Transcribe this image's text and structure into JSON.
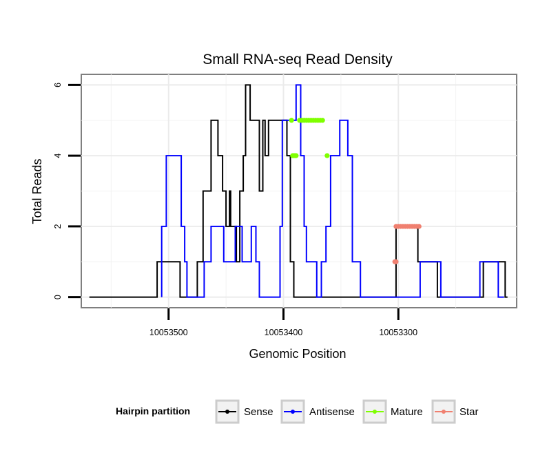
{
  "chart_data": {
    "type": "line",
    "title": "Small RNA-seq Read Density",
    "xlabel": "Genomic Position",
    "ylabel": "Total Reads",
    "x_reversed": true,
    "xlim": [
      10053576,
      10053197
    ],
    "ylim": [
      -0.3,
      6.3
    ],
    "x_ticks": [
      10053500,
      10053400,
      10053300
    ],
    "x_tick_labels": [
      "10053500",
      "10053400",
      "10053300"
    ],
    "y_ticks": [
      0,
      2,
      4,
      6
    ],
    "y_tick_labels": [
      "0",
      "2",
      "4",
      "6"
    ],
    "grid": true,
    "legend": {
      "title": "Hairpin partition",
      "position": "bottom",
      "entries": [
        {
          "label": "Sense",
          "color": "#000000"
        },
        {
          "label": "Antisense",
          "color": "#0000ff"
        },
        {
          "label": "Mature",
          "color": "#7fff00"
        },
        {
          "label": "Star",
          "color": "#f08070"
        }
      ]
    },
    "series": [
      {
        "name": "Sense",
        "color": "#000000",
        "kind": "step",
        "points": [
          [
            10053569,
            0
          ],
          [
            10053510,
            0
          ],
          [
            10053510,
            1
          ],
          [
            10053490,
            1
          ],
          [
            10053490,
            0
          ],
          [
            10053475,
            0
          ],
          [
            10053475,
            1
          ],
          [
            10053470,
            1
          ],
          [
            10053470,
            3
          ],
          [
            10053463,
            3
          ],
          [
            10053463,
            5
          ],
          [
            10053457,
            5
          ],
          [
            10053457,
            4
          ],
          [
            10053453,
            4
          ],
          [
            10053453,
            3
          ],
          [
            10053450,
            3
          ],
          [
            10053450,
            2
          ],
          [
            10053447,
            2
          ],
          [
            10053447,
            3
          ],
          [
            10053446,
            3
          ],
          [
            10053446,
            2
          ],
          [
            10053441,
            2
          ],
          [
            10053441,
            1
          ],
          [
            10053438,
            1
          ],
          [
            10053438,
            3
          ],
          [
            10053435,
            3
          ],
          [
            10053435,
            4
          ],
          [
            10053433,
            4
          ],
          [
            10053433,
            6
          ],
          [
            10053429,
            6
          ],
          [
            10053429,
            5
          ],
          [
            10053421,
            5
          ],
          [
            10053421,
            3
          ],
          [
            10053418,
            3
          ],
          [
            10053418,
            5
          ],
          [
            10053416,
            5
          ],
          [
            10053416,
            4
          ],
          [
            10053413,
            4
          ],
          [
            10053413,
            5
          ],
          [
            10053397,
            5
          ],
          [
            10053397,
            4
          ],
          [
            10053394,
            4
          ],
          [
            10053394,
            1
          ],
          [
            10053391,
            1
          ],
          [
            10053391,
            0
          ],
          [
            10053302,
            0
          ],
          [
            10053302,
            2
          ],
          [
            10053283,
            2
          ],
          [
            10053283,
            1
          ],
          [
            10053266,
            1
          ],
          [
            10053266,
            0
          ],
          [
            10053226,
            0
          ],
          [
            10053226,
            1
          ],
          [
            10053207,
            1
          ],
          [
            10053207,
            0
          ],
          [
            10053205,
            0
          ]
        ]
      },
      {
        "name": "Antisense",
        "color": "#0000ff",
        "kind": "step",
        "points": [
          [
            10053506,
            0
          ],
          [
            10053506,
            2
          ],
          [
            10053502,
            2
          ],
          [
            10053502,
            4
          ],
          [
            10053489,
            4
          ],
          [
            10053489,
            2
          ],
          [
            10053486,
            2
          ],
          [
            10053486,
            1
          ],
          [
            10053484,
            1
          ],
          [
            10053484,
            0
          ],
          [
            10053469,
            0
          ],
          [
            10053469,
            1
          ],
          [
            10053463,
            1
          ],
          [
            10053463,
            2
          ],
          [
            10053452,
            2
          ],
          [
            10053452,
            1
          ],
          [
            10053442,
            1
          ],
          [
            10053442,
            2
          ],
          [
            10053436,
            2
          ],
          [
            10053436,
            1
          ],
          [
            10053428,
            1
          ],
          [
            10053428,
            2
          ],
          [
            10053424,
            2
          ],
          [
            10053424,
            1
          ],
          [
            10053421,
            1
          ],
          [
            10053421,
            0
          ],
          [
            10053403,
            0
          ],
          [
            10053403,
            2
          ],
          [
            10053401,
            2
          ],
          [
            10053401,
            5
          ],
          [
            10053389,
            5
          ],
          [
            10053389,
            6
          ],
          [
            10053385,
            6
          ],
          [
            10053385,
            4
          ],
          [
            10053382,
            4
          ],
          [
            10053382,
            2
          ],
          [
            10053380,
            2
          ],
          [
            10053380,
            1
          ],
          [
            10053371,
            1
          ],
          [
            10053371,
            0
          ],
          [
            10053367,
            0
          ],
          [
            10053367,
            1
          ],
          [
            10053363,
            1
          ],
          [
            10053363,
            2
          ],
          [
            10053359,
            2
          ],
          [
            10053359,
            4
          ],
          [
            10053351,
            4
          ],
          [
            10053351,
            5
          ],
          [
            10053344,
            5
          ],
          [
            10053344,
            4
          ],
          [
            10053340,
            4
          ],
          [
            10053340,
            1
          ],
          [
            10053333,
            1
          ],
          [
            10053333,
            0
          ],
          [
            10053281,
            0
          ],
          [
            10053281,
            1
          ],
          [
            10053263,
            1
          ],
          [
            10053263,
            0
          ],
          [
            10053229,
            0
          ],
          [
            10053229,
            1
          ],
          [
            10053213,
            1
          ],
          [
            10053213,
            0
          ],
          [
            10053208,
            0
          ]
        ]
      }
    ],
    "mature_points": [
      [
        10053393,
        5
      ],
      [
        10053392,
        4
      ],
      [
        10053391,
        4
      ],
      [
        10053390,
        4
      ],
      [
        10053389,
        4
      ],
      [
        10053386,
        5
      ],
      [
        10053384,
        5
      ],
      [
        10053382,
        5
      ],
      [
        10053380,
        5
      ],
      [
        10053378,
        5
      ],
      [
        10053376,
        5
      ],
      [
        10053374,
        5
      ],
      [
        10053372,
        5
      ],
      [
        10053370,
        5
      ],
      [
        10053368,
        5
      ],
      [
        10053366,
        5
      ],
      [
        10053362,
        4
      ]
    ],
    "star_points": [
      [
        10053302,
        1
      ],
      [
        10053303,
        1
      ],
      [
        10053302,
        2
      ],
      [
        10053300,
        2
      ],
      [
        10053298,
        2
      ],
      [
        10053296,
        2
      ],
      [
        10053294,
        2
      ],
      [
        10053292,
        2
      ],
      [
        10053290,
        2
      ],
      [
        10053288,
        2
      ],
      [
        10053286,
        2
      ],
      [
        10053284,
        2
      ],
      [
        10053282,
        2
      ]
    ]
  }
}
